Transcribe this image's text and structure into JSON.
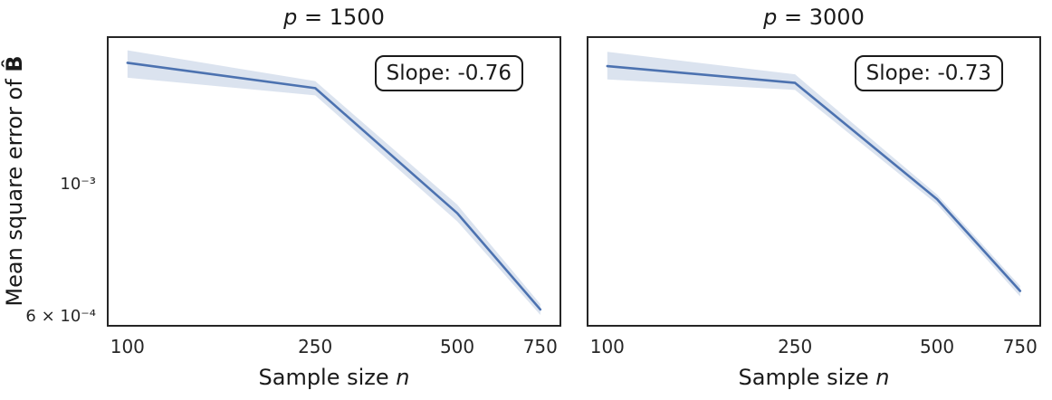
{
  "figure": {
    "background_color": "#ffffff",
    "text_color": "#262626",
    "spine_color": "#262626",
    "line_color": "#4c72b0",
    "band_color": "#4c72b0",
    "band_alpha": 0.2
  },
  "axes": {
    "xlabel": "Sample size n",
    "xlabel_parts": {
      "prefix": "Sample size ",
      "var": "n"
    },
    "ylabel": "Mean square error of B̂",
    "ylabel_parts": {
      "prefix": "Mean square error of ",
      "symbol": "B̂"
    }
  },
  "chart_data": [
    {
      "type": "line",
      "title": "p = 1500",
      "title_parts": {
        "var": "p",
        "rest": " = 1500"
      },
      "slope_label": "Slope: -0.76",
      "slope": -0.76,
      "xlabel": "Sample size n",
      "ylabel": "Mean square error of B̂",
      "xscale": "log",
      "yscale": "log",
      "xlim": [
        90.4,
        831
      ],
      "ylim": [
        0.00058,
        0.001785
      ],
      "x": [
        100,
        250,
        500,
        750
      ],
      "series": [
        {
          "name": "mean MSE",
          "values": [
            0.00161,
            0.00146,
            0.0009,
            0.00062
          ]
        }
      ],
      "band": {
        "upper": [
          0.00169,
          0.0015,
          0.00093,
          0.000633
        ],
        "lower": [
          0.00152,
          0.00142,
          0.000872,
          0.000607
        ]
      },
      "x_ticks": [
        {
          "v": 100,
          "label": "100"
        },
        {
          "v": 250,
          "label": "250"
        },
        {
          "v": 500,
          "label": "500"
        },
        {
          "v": 750,
          "label": "750"
        }
      ],
      "y_ticks": [
        {
          "v": 0.001,
          "label": "10⁻³"
        },
        {
          "v": 0.0006,
          "label": "6 × 10⁻⁴"
        }
      ],
      "legend": "none",
      "grid": false
    },
    {
      "type": "line",
      "title": "p = 3000",
      "title_parts": {
        "var": "p",
        "rest": " = 3000"
      },
      "slope_label": "Slope: -0.73",
      "slope": -0.73,
      "xlabel": "Sample size n",
      "ylabel": "Mean square error of B̂",
      "xscale": "log",
      "yscale": "log",
      "xlim": [
        90.4,
        831
      ],
      "ylim": [
        0.00058,
        0.001785
      ],
      "x": [
        100,
        250,
        500,
        750
      ],
      "series": [
        {
          "name": "mean MSE",
          "values": [
            0.00159,
            0.00149,
            0.00095,
            0.000666
          ]
        }
      ],
      "band": {
        "upper": [
          0.00168,
          0.00154,
          0.000967,
          0.000679
        ],
        "lower": [
          0.00151,
          0.00145,
          0.000931,
          0.000652
        ]
      },
      "x_ticks": [
        {
          "v": 100,
          "label": "100"
        },
        {
          "v": 250,
          "label": "250"
        },
        {
          "v": 500,
          "label": "500"
        },
        {
          "v": 750,
          "label": "750"
        }
      ],
      "y_ticks": [],
      "legend": "none",
      "grid": false
    }
  ]
}
